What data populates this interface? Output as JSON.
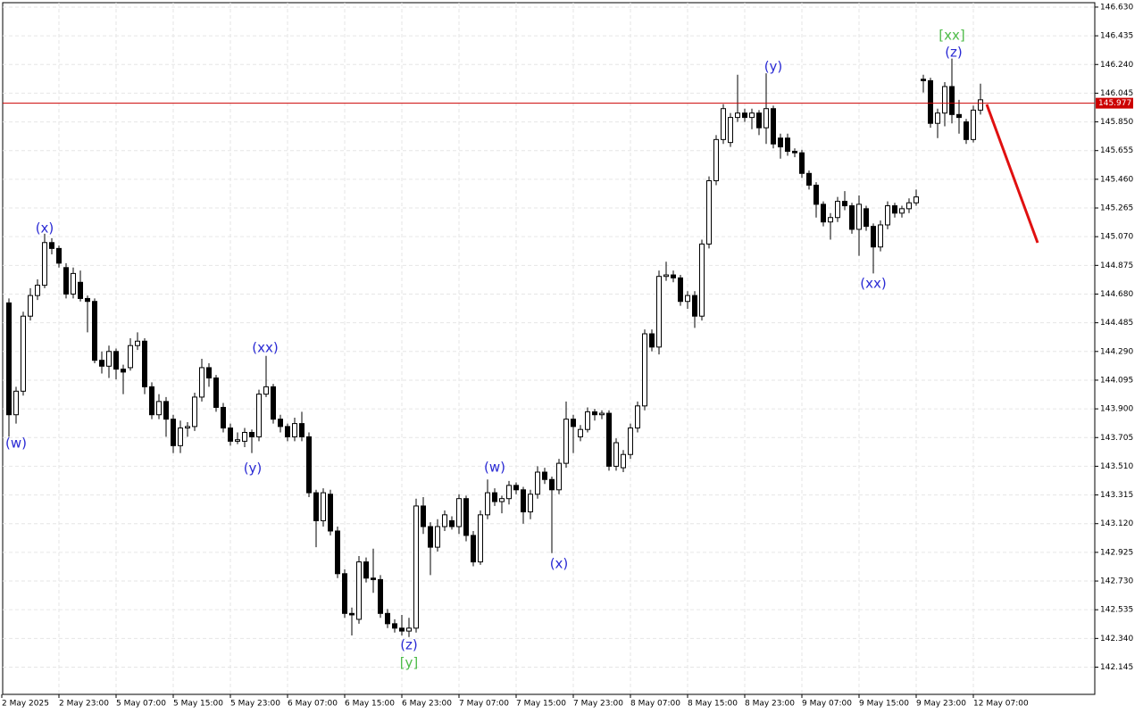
{
  "chart_data": {
    "type": "candlestick",
    "xticks": [
      "2 May 2025",
      "2 May 23:00",
      "5 May 07:00",
      "5 May 15:00",
      "5 May 23:00",
      "6 May 07:00",
      "6 May 15:00",
      "6 May 23:00",
      "7 May 07:00",
      "7 May 15:00",
      "7 May 23:00",
      "8 May 07:00",
      "8 May 15:00",
      "8 May 23:00",
      "9 May 07:00",
      "9 May 15:00",
      "9 May 23:00",
      "12 May 07:00"
    ],
    "open": [
      144.62,
      143.86,
      144.02,
      144.53,
      144.67,
      144.74,
      145.03,
      144.99,
      144.86,
      144.68,
      144.76,
      144.65,
      144.63,
      144.23,
      144.19,
      144.29,
      144.17,
      144.18,
      144.33,
      144.36,
      144.05,
      143.86,
      143.95,
      143.83,
      143.65,
      143.77,
      143.78,
      143.98,
      144.18,
      144.11,
      143.91,
      143.77,
      143.68,
      143.68,
      143.74,
      143.71,
      144.0,
      144.05,
      143.83,
      143.78,
      143.71,
      143.8,
      143.71,
      143.33,
      143.14,
      143.32,
      143.07,
      142.78,
      142.51,
      142.47,
      142.86,
      142.75,
      142.74,
      142.51,
      142.44,
      142.41,
      142.39,
      142.41,
      143.24,
      143.1,
      142.96,
      143.1,
      143.14,
      143.1,
      143.29,
      143.04,
      142.86,
      143.18,
      143.33,
      143.27,
      143.29,
      143.38,
      143.35,
      143.2,
      143.32,
      143.47,
      143.42,
      143.35,
      143.53,
      143.83,
      143.71,
      143.76,
      143.88,
      143.86,
      143.87,
      143.51,
      143.5,
      143.59,
      143.77,
      143.92,
      144.41,
      144.32,
      144.8,
      144.81,
      144.79,
      144.63,
      144.67,
      144.53,
      145.02,
      145.45,
      145.73,
      145.71,
      145.88,
      145.91,
      145.88,
      145.91,
      145.81,
      145.94,
      145.74,
      145.74,
      145.65,
      145.64,
      145.5,
      145.42,
      145.29,
      145.17,
      145.2,
      145.31,
      145.28,
      145.12,
      145.26,
      145.14,
      145.0,
      145.15,
      145.28,
      145.23,
      145.26,
      145.3,
      146.14,
      146.13,
      145.84,
      145.91,
      146.09,
      145.9,
      145.85,
      145.73,
      145.93
    ],
    "high": [
      144.65,
      144.05,
      144.56,
      144.72,
      144.78,
      145.09,
      145.06,
      145.01,
      144.89,
      144.86,
      144.84,
      144.67,
      144.65,
      144.29,
      144.33,
      144.31,
      144.2,
      144.38,
      144.42,
      144.38,
      144.08,
      144.0,
      143.98,
      143.86,
      143.82,
      143.81,
      144.01,
      144.24,
      144.21,
      144.13,
      143.94,
      143.8,
      143.74,
      143.77,
      143.76,
      144.03,
      144.26,
      144.07,
      143.86,
      143.8,
      143.84,
      143.88,
      143.74,
      143.35,
      143.36,
      143.35,
      143.1,
      142.81,
      142.55,
      142.9,
      142.89,
      142.95,
      142.77,
      142.54,
      142.47,
      142.5,
      142.48,
      143.29,
      143.3,
      143.13,
      143.15,
      143.21,
      143.17,
      143.32,
      143.31,
      143.07,
      143.21,
      143.42,
      143.36,
      143.31,
      143.41,
      143.4,
      143.37,
      143.35,
      143.51,
      143.5,
      143.44,
      143.56,
      143.95,
      143.86,
      143.79,
      143.91,
      143.9,
      143.89,
      143.89,
      143.7,
      143.62,
      143.8,
      143.95,
      144.44,
      144.44,
      144.84,
      144.9,
      144.84,
      144.81,
      144.7,
      144.7,
      145.05,
      145.48,
      145.76,
      145.97,
      145.91,
      146.17,
      145.94,
      145.94,
      145.93,
      146.18,
      145.96,
      145.77,
      145.77,
      145.67,
      145.66,
      145.52,
      145.44,
      145.31,
      145.23,
      145.34,
      145.38,
      145.3,
      145.35,
      145.28,
      145.16,
      145.18,
      145.31,
      145.3,
      145.28,
      145.33,
      145.39,
      146.17,
      146.15,
      145.94,
      146.12,
      146.28,
      146.0,
      145.87,
      145.96,
      146.11
    ],
    "low": [
      143.71,
      143.8,
      143.99,
      144.5,
      144.64,
      144.72,
      144.95,
      144.86,
      144.65,
      144.65,
      144.63,
      144.42,
      144.21,
      144.14,
      144.11,
      144.1,
      144.0,
      144.16,
      144.3,
      144.0,
      143.83,
      143.83,
      143.71,
      143.6,
      143.6,
      143.71,
      143.75,
      143.95,
      144.05,
      143.88,
      143.74,
      143.65,
      143.66,
      143.64,
      143.6,
      143.68,
      143.98,
      143.8,
      143.74,
      143.68,
      143.68,
      143.68,
      143.3,
      142.96,
      143.1,
      143.04,
      142.75,
      142.48,
      142.36,
      142.44,
      142.72,
      142.65,
      142.48,
      142.41,
      142.38,
      142.36,
      142.35,
      142.38,
      143.05,
      142.77,
      142.93,
      143.07,
      143.08,
      143.05,
      143.0,
      142.83,
      142.84,
      143.15,
      143.24,
      143.19,
      143.25,
      143.32,
      143.12,
      143.15,
      143.29,
      143.39,
      142.92,
      143.32,
      143.5,
      143.6,
      143.68,
      143.74,
      143.82,
      143.83,
      143.48,
      143.48,
      143.47,
      143.56,
      143.74,
      143.89,
      144.29,
      144.27,
      144.77,
      144.76,
      144.6,
      144.58,
      144.45,
      144.5,
      144.99,
      145.42,
      145.7,
      145.68,
      145.85,
      145.85,
      145.8,
      145.76,
      145.7,
      145.67,
      145.6,
      145.62,
      145.61,
      145.47,
      145.39,
      145.2,
      145.14,
      145.05,
      145.17,
      145.25,
      145.09,
      144.94,
      145.11,
      144.82,
      144.97,
      145.12,
      145.2,
      145.2,
      145.23,
      145.28,
      146.05,
      145.81,
      145.74,
      145.82,
      145.84,
      145.77,
      145.7,
      145.71,
      145.9
    ],
    "close": [
      143.86,
      144.02,
      144.53,
      144.67,
      144.74,
      145.03,
      144.99,
      144.89,
      144.68,
      144.82,
      144.65,
      144.63,
      144.23,
      144.19,
      144.29,
      144.17,
      144.15,
      144.33,
      144.36,
      144.05,
      143.86,
      143.95,
      143.83,
      143.65,
      143.77,
      143.78,
      143.98,
      144.18,
      144.11,
      143.91,
      143.77,
      143.68,
      143.69,
      143.74,
      143.71,
      144.0,
      144.05,
      143.83,
      143.78,
      143.71,
      143.8,
      143.71,
      143.33,
      143.14,
      143.33,
      143.07,
      142.78,
      142.51,
      142.5,
      142.86,
      142.75,
      142.74,
      142.51,
      142.44,
      142.41,
      142.39,
      142.41,
      143.24,
      143.1,
      142.96,
      143.1,
      143.18,
      143.1,
      143.29,
      143.04,
      142.86,
      143.18,
      143.33,
      143.27,
      143.29,
      143.38,
      143.35,
      143.2,
      143.32,
      143.47,
      143.42,
      143.35,
      143.53,
      143.83,
      143.78,
      143.76,
      143.88,
      143.86,
      143.87,
      143.51,
      143.67,
      143.59,
      143.77,
      143.92,
      144.41,
      144.32,
      144.8,
      144.81,
      144.79,
      144.63,
      144.67,
      144.53,
      145.02,
      145.45,
      145.73,
      145.94,
      145.88,
      145.91,
      145.88,
      145.91,
      145.81,
      145.94,
      145.7,
      145.68,
      145.65,
      145.64,
      145.5,
      145.42,
      145.29,
      145.17,
      145.2,
      145.31,
      145.28,
      145.12,
      145.29,
      145.14,
      145.0,
      145.15,
      145.28,
      145.23,
      145.26,
      145.3,
      145.34,
      146.13,
      145.84,
      145.91,
      146.09,
      145.9,
      145.88,
      145.73,
      145.93,
      146.0
    ],
    "up_color": "#ffffff",
    "down_color": "#000000",
    "ylim": [
      141.96,
      146.66
    ],
    "yticks": [
      {
        "value": 146.63,
        "label": "146.630"
      },
      146.435,
      {
        "value": 146.24,
        "label": "146.240"
      },
      146.045,
      {
        "value": 145.85,
        "label": "145.850"
      },
      145.655,
      {
        "value": 145.46,
        "label": "145.460"
      },
      145.265,
      {
        "value": 145.07,
        "label": "145.070"
      },
      144.875,
      {
        "value": 144.68,
        "label": "144.680"
      },
      144.485,
      {
        "value": 144.29,
        "label": "144.290"
      },
      144.095,
      {
        "value": 143.9,
        "label": "143.900"
      },
      143.705,
      {
        "value": 143.51,
        "label": "143.510"
      },
      143.315,
      {
        "value": 143.12,
        "label": "143.120"
      },
      142.925,
      {
        "value": 142.73,
        "label": "142.730"
      },
      142.535,
      {
        "value": 142.34,
        "label": "142.340"
      },
      142.145
    ],
    "grid": true,
    "current_price": 145.977,
    "current_price_color": "#cc0000",
    "annotations": [
      {
        "text": "(w)",
        "color": "#2a2ad4"
      },
      {
        "text": "(x)",
        "color": "#2a2ad4"
      },
      {
        "text": "(xx)",
        "color": "#2a2ad4"
      },
      {
        "text": "(y)",
        "color": "#2a2ad4"
      },
      {
        "text": "(z)",
        "color": "#2a2ad4"
      },
      {
        "text": "[y]",
        "color": "#4cbb47"
      },
      {
        "text": "(w)",
        "color": "#2a2ad4"
      },
      {
        "text": "(x)",
        "color": "#2a2ad4"
      },
      {
        "text": "(y)",
        "color": "#2a2ad4"
      },
      {
        "text": "(xx)",
        "color": "#2a2ad4"
      },
      {
        "text": "(z)",
        "color": "#2a2ad4"
      },
      {
        "text": "[xx]",
        "color": "#4cbb47"
      }
    ]
  }
}
